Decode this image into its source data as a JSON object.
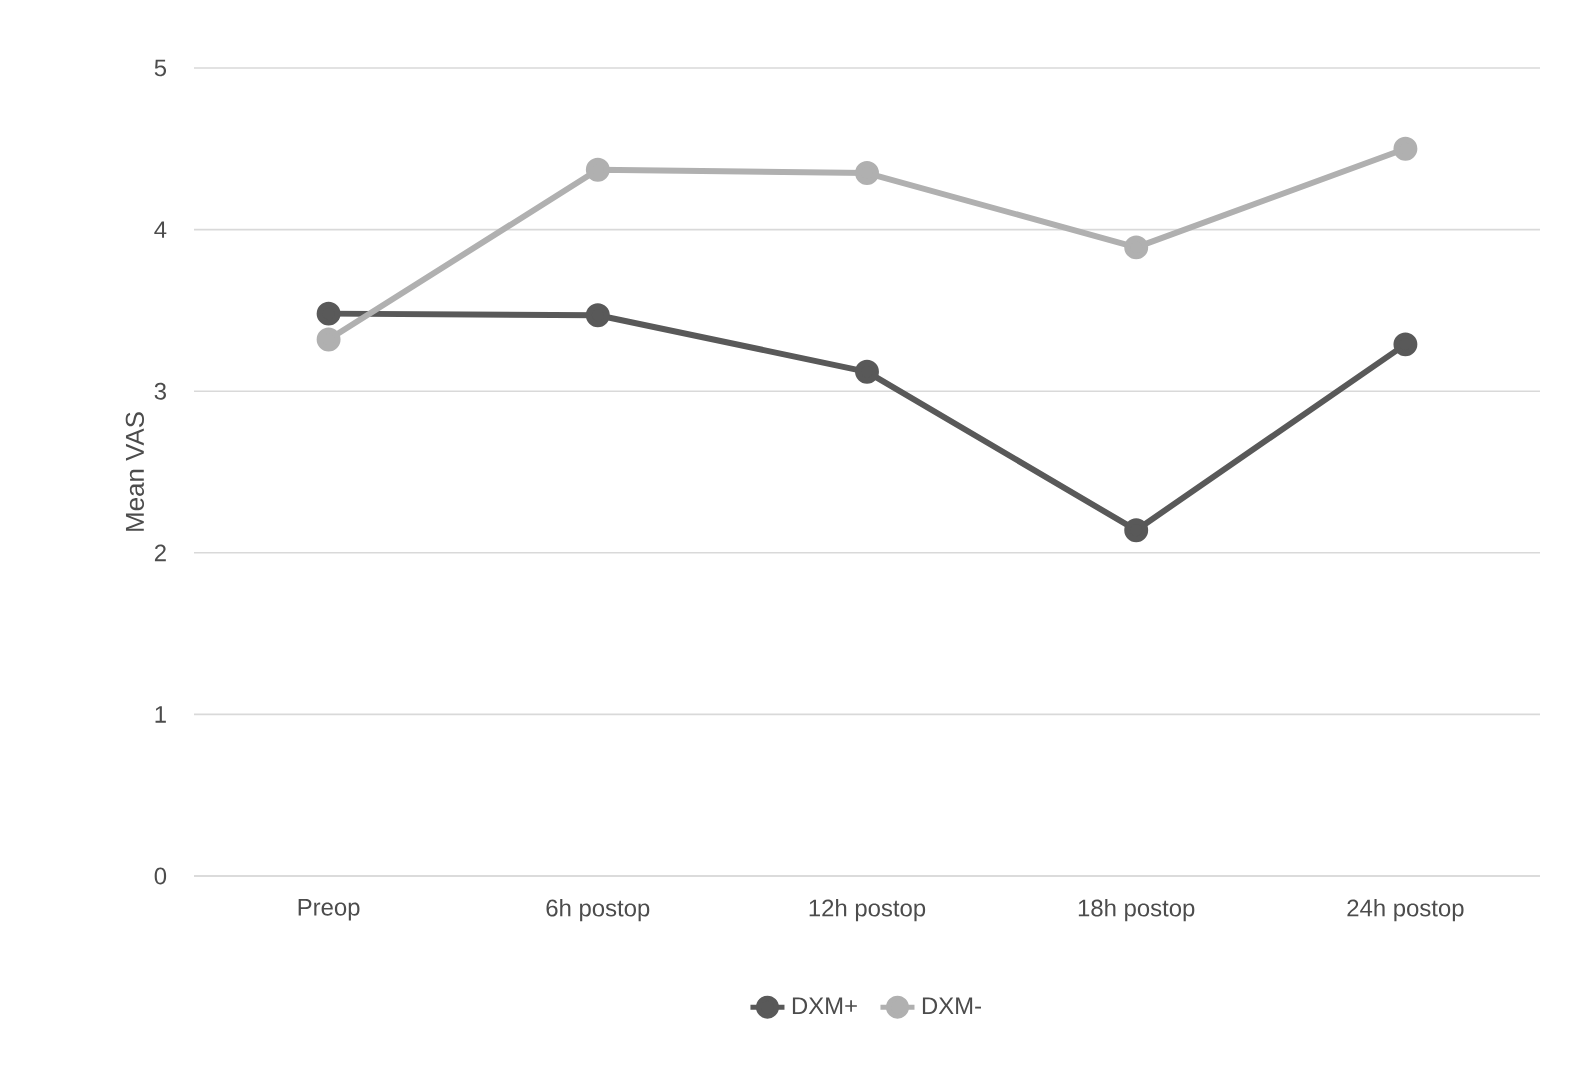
{
  "chart_data": {
    "type": "line",
    "ylabel": "Mean VAS",
    "categories": [
      "Preop",
      "6h postop",
      "12h postop",
      "18h postop",
      "24h postop"
    ],
    "series": [
      {
        "name": "DXM+",
        "color": "#595959",
        "values": [
          3.48,
          3.47,
          3.12,
          2.14,
          3.29
        ]
      },
      {
        "name": "DXM-",
        "color": "#b0b0b0",
        "values": [
          3.32,
          4.37,
          4.35,
          3.89,
          4.5
        ]
      }
    ],
    "ylim": [
      0,
      5
    ],
    "yticks": [
      0,
      1,
      2,
      3,
      4,
      5
    ],
    "grid": "y",
    "legend": "bottom",
    "marker": "circle",
    "line_style": "solid"
  }
}
